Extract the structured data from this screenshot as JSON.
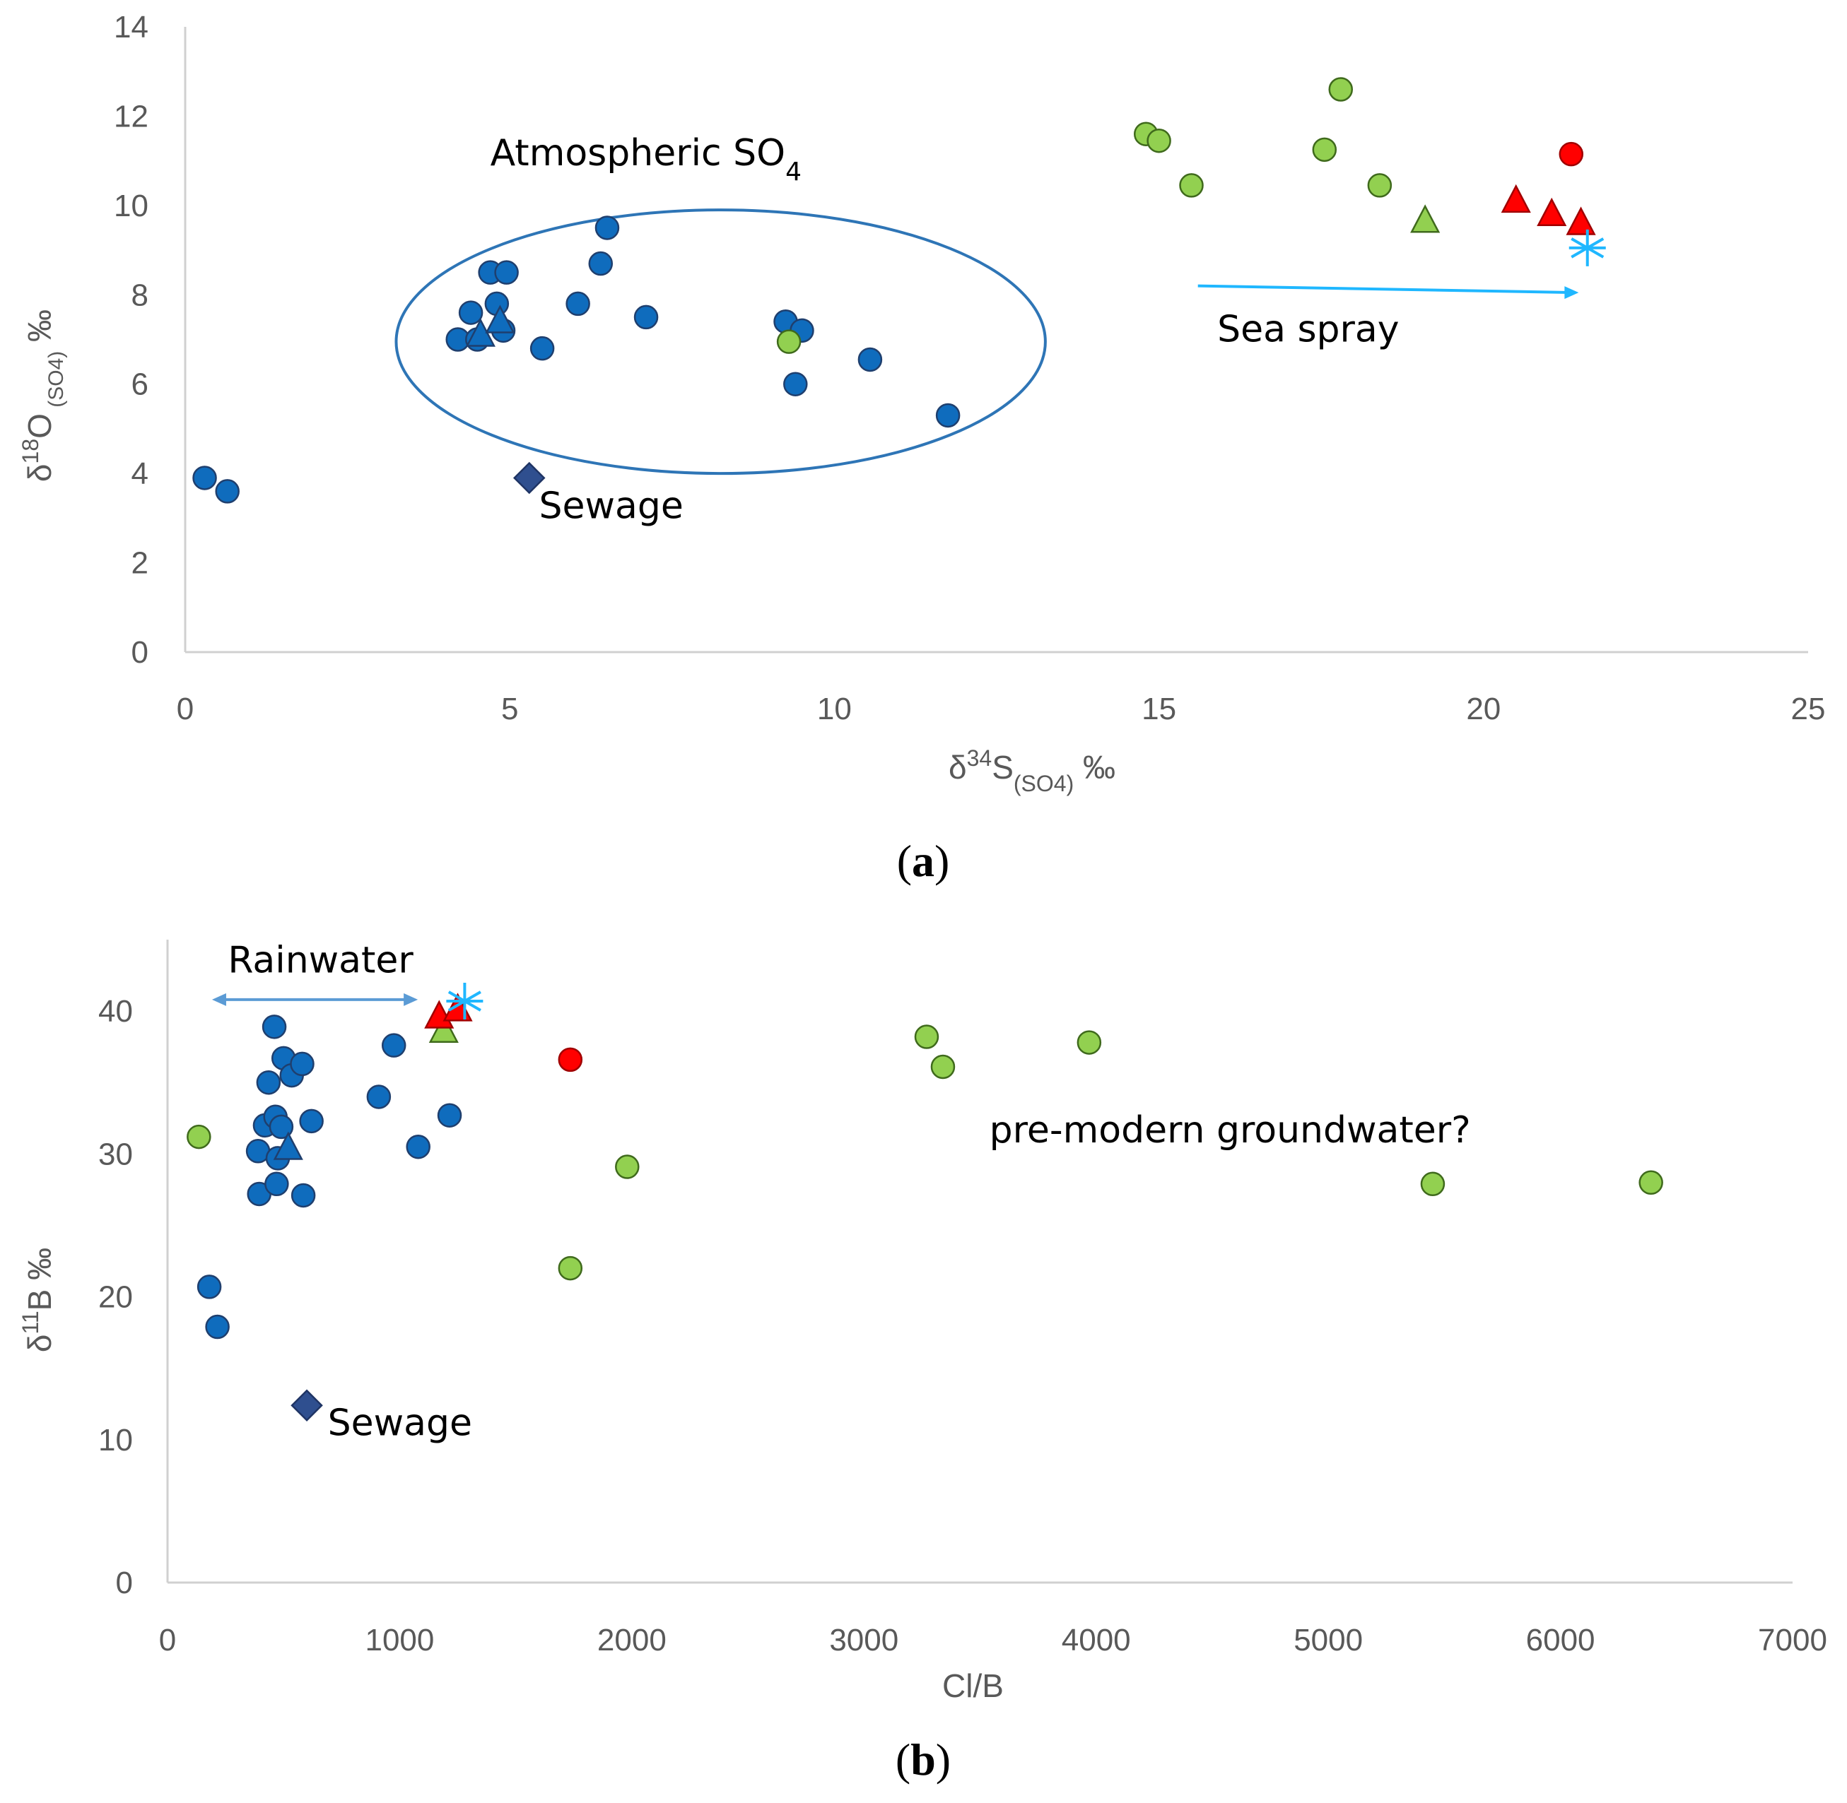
{
  "colors": {
    "blue": "#0f6cbd",
    "blue_edge": "#1f3f6e",
    "green": "#92d050",
    "green_edge": "#3f6a1c",
    "red": "#ff0000",
    "red_edge": "#a00000",
    "navy": "#2f4f8f",
    "cyan": "#1fb7ff",
    "axis": "#d0d0d0",
    "ellipse": "#2e75b6",
    "arrow_a": "#1fb7ff",
    "arrow_b": "#5b9bd5"
  },
  "chart_data": [
    {
      "type": "scatter",
      "panel_label": "a",
      "caption": "(a)",
      "xlabel": "δ34S(SO4) ‰",
      "ylabel": "δ18O (SO4) ‰",
      "xlabel_parts": {
        "base": "δ",
        "sup": "34",
        "main": "S",
        "sub": "(SO4)",
        "unit": " ‰"
      },
      "ylabel_parts": {
        "base": "δ",
        "sup": "18",
        "main": "O",
        "sub": " (SO4)",
        "unit": "  ‰"
      },
      "xlim": [
        0,
        25
      ],
      "ylim": [
        0,
        14
      ],
      "xticks": [
        0,
        5,
        10,
        15,
        20,
        25
      ],
      "yticks": [
        0,
        2,
        4,
        6,
        8,
        10,
        12,
        14
      ],
      "series": [
        {
          "name": "blue circles",
          "marker": "circle",
          "color": "blue",
          "points": [
            [
              0.3,
              3.9
            ],
            [
              0.65,
              3.6
            ],
            [
              4.2,
              7.0
            ],
            [
              4.4,
              7.6
            ],
            [
              4.5,
              7.0
            ],
            [
              4.7,
              8.5
            ],
            [
              4.8,
              7.8
            ],
            [
              4.9,
              7.2
            ],
            [
              4.95,
              8.5
            ],
            [
              5.5,
              6.8
            ],
            [
              6.05,
              7.8
            ],
            [
              6.4,
              8.7
            ],
            [
              6.5,
              9.5
            ],
            [
              7.1,
              7.5
            ],
            [
              9.25,
              7.4
            ],
            [
              9.5,
              7.2
            ],
            [
              9.4,
              6.0
            ],
            [
              10.55,
              6.55
            ],
            [
              11.75,
              5.3
            ]
          ]
        },
        {
          "name": "blue triangle",
          "marker": "triangle",
          "color": "blue",
          "points": [
            [
              4.55,
              7.1
            ],
            [
              4.85,
              7.4
            ]
          ]
        },
        {
          "name": "green circles",
          "marker": "circle",
          "color": "green",
          "points": [
            [
              9.3,
              6.95
            ],
            [
              14.8,
              11.6
            ],
            [
              15.0,
              11.45
            ],
            [
              15.5,
              10.45
            ],
            [
              17.55,
              11.25
            ],
            [
              17.8,
              12.6
            ],
            [
              18.4,
              10.45
            ]
          ]
        },
        {
          "name": "green triangle",
          "marker": "triangle",
          "color": "green",
          "points": [
            [
              19.1,
              9.65
            ]
          ]
        },
        {
          "name": "red circle",
          "marker": "circle",
          "color": "red",
          "points": [
            [
              21.35,
              11.15
            ]
          ]
        },
        {
          "name": "red triangles",
          "marker": "triangle",
          "color": "red",
          "points": [
            [
              20.5,
              10.1
            ],
            [
              21.05,
              9.8
            ],
            [
              21.5,
              9.6
            ]
          ]
        },
        {
          "name": "sewage",
          "marker": "diamond",
          "color": "navy",
          "points": [
            [
              5.3,
              3.9
            ]
          ]
        },
        {
          "name": "seawater",
          "marker": "asterisk",
          "color": "cyan",
          "points": [
            [
              21.6,
              9.05
            ]
          ]
        }
      ],
      "ellipse": {
        "cx": 8.25,
        "cy": 6.95,
        "rx": 5.0,
        "ry": 2.95
      },
      "arrow": {
        "x1": 15.6,
        "y1": 8.2,
        "x2": 21.4,
        "y2": 8.05
      },
      "annotations": [
        {
          "key": "atmospheric",
          "text": "Atmospheric SO",
          "sub": "4",
          "x": 4.7,
          "y": 10.9,
          "anchor": "start"
        },
        {
          "key": "seaspray",
          "text": "Sea spray",
          "x": 17.3,
          "y": 6.95,
          "anchor": "middle"
        },
        {
          "key": "sewage",
          "text": "Sewage",
          "x": 5.45,
          "y": 3.0,
          "anchor": "start"
        }
      ]
    },
    {
      "type": "scatter",
      "panel_label": "b",
      "caption": "(b)",
      "xlabel": "Cl/B",
      "ylabel": "δ11B ‰",
      "ylabel_parts": {
        "base": "δ",
        "sup": "11",
        "main": "B",
        "sub": "",
        "unit": " ‰"
      },
      "xlim": [
        0,
        7000
      ],
      "ylim": [
        0,
        45
      ],
      "xticks": [
        0,
        1000,
        2000,
        3000,
        4000,
        5000,
        6000,
        7000
      ],
      "yticks": [
        0,
        10,
        20,
        30,
        40
      ],
      "series": [
        {
          "name": "blue circles",
          "marker": "circle",
          "color": "blue",
          "points": [
            [
              180,
              20.7
            ],
            [
              215,
              17.9
            ],
            [
              390,
              30.2
            ],
            [
              395,
              27.2
            ],
            [
              420,
              32.0
            ],
            [
              435,
              35.0
            ],
            [
              460,
              38.9
            ],
            [
              465,
              32.6
            ],
            [
              470,
              27.9
            ],
            [
              475,
              29.7
            ],
            [
              490,
              31.9
            ],
            [
              500,
              36.7
            ],
            [
              535,
              35.5
            ],
            [
              580,
              36.3
            ],
            [
              585,
              27.1
            ],
            [
              620,
              32.3
            ],
            [
              910,
              34.0
            ],
            [
              975,
              37.6
            ],
            [
              1080,
              30.5
            ],
            [
              1215,
              32.7
            ]
          ]
        },
        {
          "name": "blue triangle",
          "marker": "triangle",
          "color": "blue",
          "points": [
            [
              520,
              30.4
            ]
          ]
        },
        {
          "name": "green circles",
          "marker": "circle",
          "color": "green",
          "points": [
            [
              135,
              31.2
            ],
            [
              1735,
              22.0
            ],
            [
              1980,
              29.1
            ],
            [
              3270,
              38.2
            ],
            [
              3340,
              36.1
            ],
            [
              3970,
              37.8
            ],
            [
              5450,
              27.9
            ],
            [
              6390,
              28.0
            ]
          ]
        },
        {
          "name": "green triangle",
          "marker": "triangle",
          "color": "green",
          "points": [
            [
              1190,
              38.6
            ]
          ]
        },
        {
          "name": "red circle",
          "marker": "circle",
          "color": "red",
          "points": [
            [
              1735,
              36.6
            ]
          ]
        },
        {
          "name": "red triangles",
          "marker": "triangle",
          "color": "red",
          "points": [
            [
              1170,
              39.6
            ],
            [
              1250,
              40.1
            ]
          ]
        },
        {
          "name": "sewage",
          "marker": "diamond",
          "color": "navy",
          "points": [
            [
              600,
              12.4
            ]
          ]
        },
        {
          "name": "seawater",
          "marker": "asterisk",
          "color": "cyan",
          "points": [
            [
              1280,
              40.7
            ]
          ]
        }
      ],
      "arrow": {
        "x1": 210,
        "y1": 40.8,
        "x2": 1060,
        "y2": 40.8,
        "double": true
      },
      "annotations": [
        {
          "key": "rainwater",
          "text": "Rainwater",
          "x": 260,
          "y": 42.7,
          "anchor": "start"
        },
        {
          "key": "premodern",
          "text": "pre-modern groundwater?",
          "x": 3540,
          "y": 30.8,
          "anchor": "start"
        },
        {
          "key": "sewage",
          "text": "Sewage",
          "x": 690,
          "y": 10.3,
          "anchor": "start"
        }
      ]
    }
  ]
}
